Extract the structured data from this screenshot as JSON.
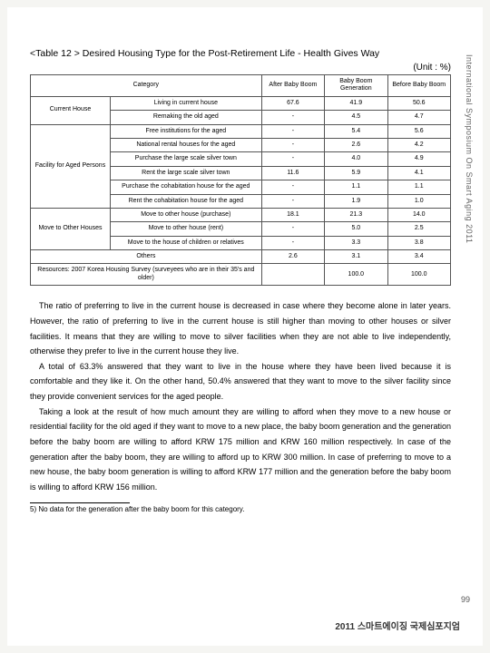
{
  "title": "<Table 12 > Desired Housing Type for the Post-Retirement Life - Health Gives Way",
  "unit": "(Unit : %)",
  "spine": "International Symposium On Smart Aging 2011",
  "headers": {
    "category": "Category",
    "c1": "After Baby Boom",
    "c2": "Baby Boom Generation",
    "c3": "Before Baby Boom"
  },
  "groups": [
    {
      "label": "Current House",
      "rows": [
        {
          "t": "Living in current house",
          "v": [
            "67.6",
            "41.9",
            "50.6"
          ]
        },
        {
          "t": "Remaking the old aged",
          "v": [
            "-",
            "4.5",
            "4.7"
          ]
        }
      ]
    },
    {
      "label": "Facility for Aged Persons",
      "rows": [
        {
          "t": "Free institutions for the aged",
          "v": [
            "-",
            "5.4",
            "5.6"
          ]
        },
        {
          "t": "National rental houses for the aged",
          "v": [
            "-",
            "2.6",
            "4.2"
          ]
        },
        {
          "t": "Purchase the large scale silver town",
          "v": [
            "-",
            "4.0",
            "4.9"
          ]
        },
        {
          "t": "Rent the large scale silver town",
          "v": [
            "11.6",
            "5.9",
            "4.1"
          ]
        },
        {
          "t": "Purchase the cohabitation house for the aged",
          "v": [
            "-",
            "1.1",
            "1.1"
          ]
        },
        {
          "t": "Rent the cohabitation house for the aged",
          "v": [
            "-",
            "1.9",
            "1.0"
          ]
        }
      ]
    },
    {
      "label": "Move to Other Houses",
      "rows": [
        {
          "t": "Move to other house (purchase)",
          "v": [
            "18.1",
            "21.3",
            "14.0"
          ]
        },
        {
          "t": "Move to other house (rent)",
          "v": [
            "-",
            "5.0",
            "2.5"
          ]
        },
        {
          "t": "Move to the house of children or relatives",
          "v": [
            "-",
            "3.3",
            "3.8"
          ]
        }
      ]
    }
  ],
  "others": {
    "label": "Others",
    "v": [
      "2.6",
      "3.1",
      "3.4"
    ]
  },
  "resources": {
    "label": "Resources: 2007 Korea Housing Survey (surveyees who are in their 35's and older)",
    "v": [
      "",
      "100.0",
      "100.0"
    ]
  },
  "paragraphs": [
    "The ratio of preferring to live in the current house is decreased in case where they become alone in later years. However, the ratio of preferring to live in the current house is still higher than moving to other houses or silver facilities. It means that they are willing to move to silver facilities when they are not able to live independently, otherwise they prefer to live in the current house they live.",
    "A total of 63.3% answered that they want to live in the house where they have been lived because it is comfortable and they like it. On the other hand, 50.4% answered that they want to move to the silver facility since they provide convenient services for the aged people.",
    "Taking a look at the result of how much amount they are willing to afford when they move to a new house or residential facility for the old aged if they want to move to a new place, the baby boom generation and the generation before the baby boom are willing to afford KRW 175 million and KRW 160 million respectively. In case of the generation after the baby boom, they are willing to afford up to KRW 300 million.  In case of preferring to move to a new house,  the baby boom generation is willing to afford KRW 177 million and the generation before the baby boom is willing to afford KRW 156 million."
  ],
  "footnote": "5) No data for the generation after the baby boom for this category.",
  "pagenum": "99",
  "bottom": "2011 스마트에이징 국제심포지엄"
}
